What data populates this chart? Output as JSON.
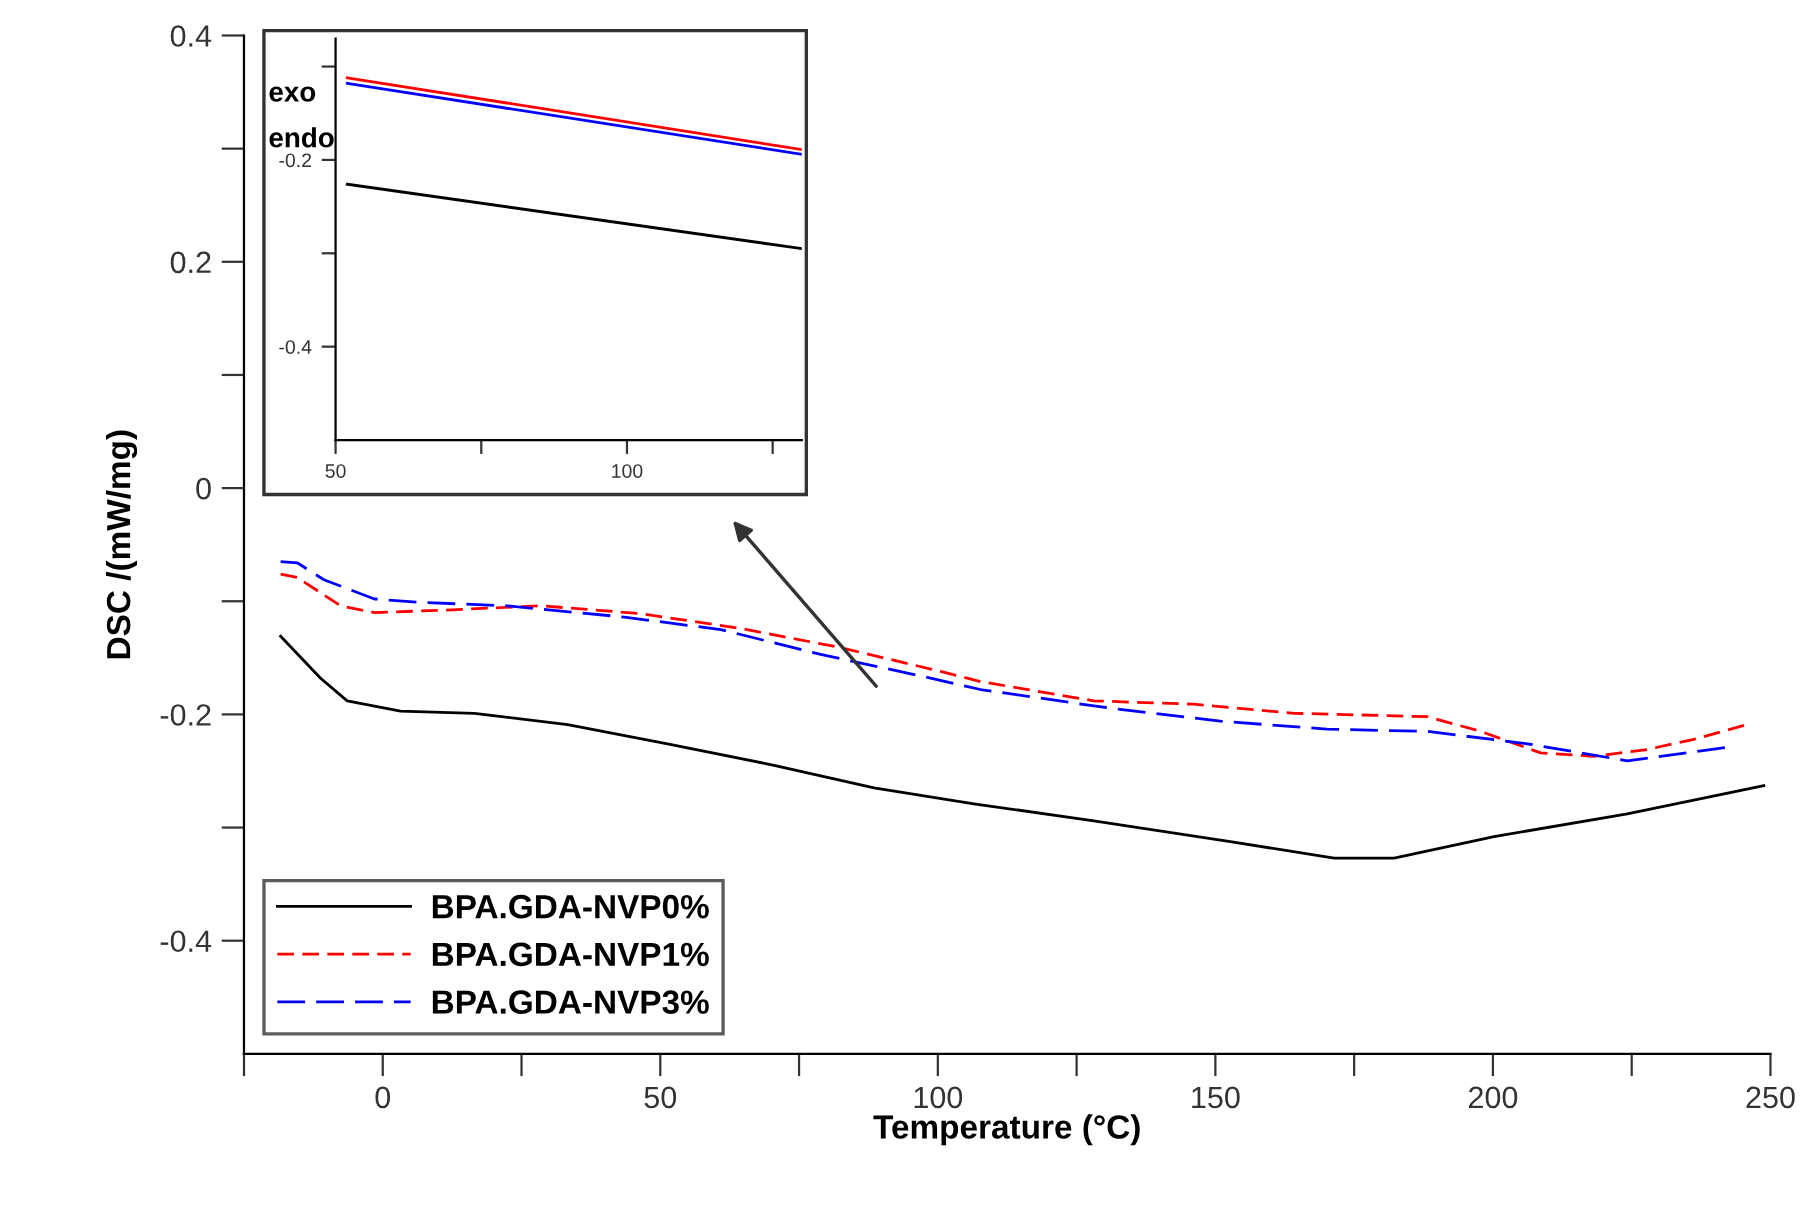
{
  "chart_data": [
    {
      "type": "line",
      "xlabel": "Temperature (°C)",
      "ylabel": "DSC /(mW/mg)",
      "annotations": [
        "exo",
        "endo"
      ],
      "xlim": [
        -25,
        250
      ],
      "ylim": [
        -0.5,
        0.4
      ],
      "xticks": [
        {
          "value": -25,
          "label": null
        },
        0,
        {
          "value": 25,
          "label": null
        },
        50,
        {
          "value": 75,
          "label": null
        },
        100,
        {
          "value": 125,
          "label": null
        },
        150,
        {
          "value": 175,
          "label": null
        },
        200,
        {
          "value": 225,
          "label": null
        },
        250
      ],
      "yticks": [
        -0.4,
        {
          "value": -0.3,
          "label": null
        },
        -0.2,
        {
          "value": -0.1,
          "label": null
        },
        0,
        {
          "value": 0.1,
          "label": null
        },
        0.2,
        {
          "value": 0.3,
          "label": null
        },
        0.4
      ],
      "grid": false,
      "legend": "bottom left",
      "series": [
        {
          "name": "BPA.GDA-NVP0%",
          "color": "#000000",
          "line_style": "solid",
          "x": [
            -18.4,
            -11.2,
            -6.4,
            3.2,
            16.5,
            33.3,
            51.3,
            70.5,
            88.5,
            106.5,
            128.1,
            152.1,
            171.4,
            182.2,
            200.2,
            224.2,
            248.8
          ],
          "values": [
            -0.131,
            -0.168,
            -0.188,
            -0.197,
            -0.199,
            -0.209,
            -0.226,
            -0.245,
            -0.265,
            -0.279,
            -0.294,
            -0.312,
            -0.327,
            -0.327,
            -0.308,
            -0.288,
            -0.263
          ]
        },
        {
          "name": "BPA.GDA-NVP1%",
          "color": "#ff0000",
          "line_style": "dashed",
          "x": [
            -18.4,
            -15.4,
            -7.6,
            -1.5,
            10.4,
            28.5,
            46.5,
            64.5,
            82.5,
            100.5,
            107.7,
            128.1,
            146.1,
            164.2,
            188.2,
            197.8,
            208.6,
            218.2,
            227.8,
            236.2,
            245.8
          ],
          "values": [
            -0.076,
            -0.079,
            -0.104,
            -0.11,
            -0.108,
            -0.104,
            -0.111,
            -0.124,
            -0.141,
            -0.162,
            -0.171,
            -0.188,
            -0.191,
            -0.199,
            -0.202,
            -0.215,
            -0.234,
            -0.237,
            -0.231,
            -0.222,
            -0.209
          ]
        },
        {
          "name": "BPA.GDA-NVP3%",
          "color": "#0000ff",
          "line_style": "dashed",
          "x": [
            -18.4,
            -15.4,
            -10.6,
            -1.5,
            6.8,
            22.4,
            43.5,
            60.9,
            78.9,
            96.9,
            107.7,
            131.7,
            150.9,
            170.1,
            188.2,
            206.2,
            224.2,
            242.2
          ],
          "values": [
            -0.065,
            -0.066,
            -0.081,
            -0.098,
            -0.101,
            -0.104,
            -0.114,
            -0.125,
            -0.147,
            -0.166,
            -0.178,
            -0.195,
            -0.206,
            -0.213,
            -0.215,
            -0.226,
            -0.241,
            -0.229
          ]
        }
      ]
    },
    {
      "type": "line",
      "xlim": [
        50,
        130
      ],
      "ylim": [
        -0.5,
        -0.07
      ],
      "xticks": [
        50,
        {
          "value": 75,
          "label": null
        },
        100,
        {
          "value": 125,
          "label": null
        }
      ],
      "yticks": [
        {
          "value": -0.1,
          "label": null
        },
        -0.2,
        {
          "value": -0.3,
          "label": null
        },
        -0.4
      ],
      "grid": false,
      "series": [
        {
          "color": "#000000",
          "line_style": "solid",
          "x": [
            52,
            130
          ],
          "values": [
            -0.226,
            -0.295
          ]
        },
        {
          "color": "#ff0000",
          "line_style": "solid",
          "x": [
            52,
            130
          ],
          "values": [
            -0.112,
            -0.189
          ]
        },
        {
          "color": "#0000ff",
          "line_style": "solid",
          "x": [
            52,
            130
          ],
          "values": [
            -0.118,
            -0.194
          ]
        }
      ]
    }
  ]
}
